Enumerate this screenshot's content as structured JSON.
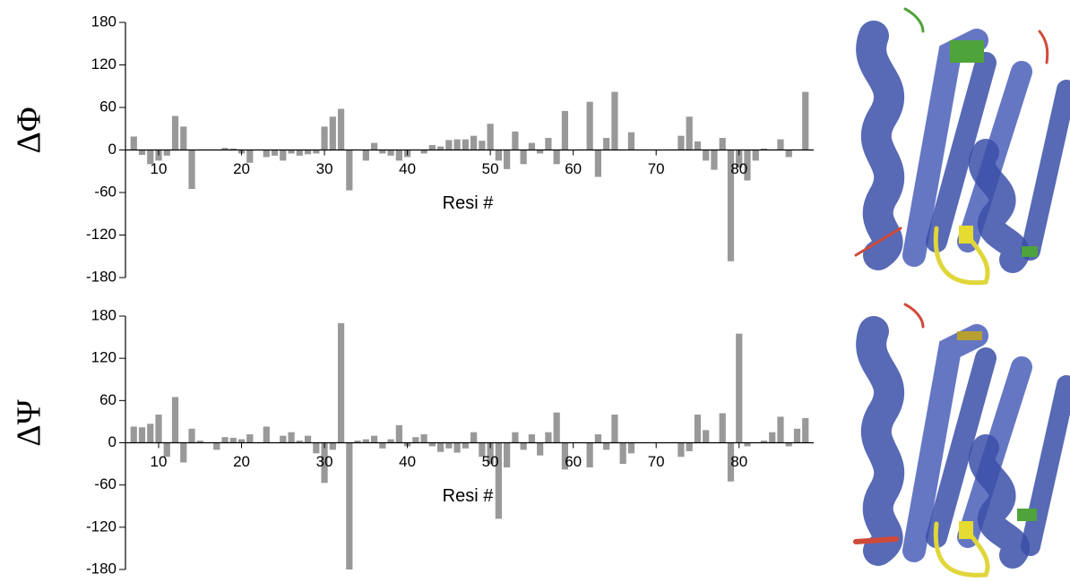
{
  "chart_data": [
    {
      "type": "bar",
      "y_label": "ΔΦ",
      "x_label": "Resi #",
      "color": "#999999",
      "x": [
        7,
        8,
        9,
        10,
        11,
        12,
        13,
        14,
        15,
        16,
        17,
        18,
        19,
        20,
        21,
        22,
        23,
        24,
        25,
        26,
        27,
        28,
        29,
        30,
        31,
        32,
        33,
        34,
        35,
        36,
        37,
        38,
        39,
        40,
        41,
        42,
        43,
        44,
        45,
        46,
        47,
        48,
        49,
        50,
        51,
        52,
        53,
        54,
        55,
        56,
        57,
        58,
        59,
        60,
        61,
        62,
        63,
        64,
        65,
        66,
        67,
        68,
        69,
        70,
        71,
        72,
        73,
        74,
        75,
        76,
        77,
        78,
        79,
        80,
        81,
        82,
        83,
        84,
        85,
        86,
        87,
        88
      ],
      "values": [
        19,
        -7,
        -20,
        -15,
        -8,
        48,
        33,
        -55,
        0,
        0,
        0,
        3,
        2,
        -5,
        -18,
        0,
        -10,
        -8,
        -15,
        -5,
        -8,
        -6,
        -5,
        33,
        47,
        58,
        -57,
        0,
        -15,
        10,
        -5,
        -8,
        -15,
        -10,
        0,
        -5,
        7,
        5,
        14,
        15,
        15,
        20,
        13,
        37,
        -15,
        -27,
        26,
        -20,
        10,
        -5,
        17,
        -20,
        55,
        0,
        0,
        68,
        -38,
        17,
        82,
        0,
        25,
        0,
        0,
        0,
        0,
        0,
        20,
        47,
        12,
        -15,
        -28,
        17,
        -157,
        -25,
        -43,
        -15,
        2,
        0,
        15,
        -10,
        0,
        82
      ],
      "xlim": [
        6,
        89
      ],
      "xticks": [
        10,
        20,
        30,
        40,
        50,
        60,
        70,
        80
      ],
      "ylim": [
        -180,
        180
      ],
      "yticks": [
        180,
        120,
        60,
        0,
        -60,
        -120,
        -180
      ]
    },
    {
      "type": "bar",
      "y_label": "ΔΨ",
      "x_label": "Resi #",
      "color": "#999999",
      "x": [
        7,
        8,
        9,
        10,
        11,
        12,
        13,
        14,
        15,
        16,
        17,
        18,
        19,
        20,
        21,
        22,
        23,
        24,
        25,
        26,
        27,
        28,
        29,
        30,
        31,
        32,
        33,
        34,
        35,
        36,
        37,
        38,
        39,
        40,
        41,
        42,
        43,
        44,
        45,
        46,
        47,
        48,
        49,
        50,
        51,
        52,
        53,
        54,
        55,
        56,
        57,
        58,
        59,
        60,
        61,
        62,
        63,
        64,
        65,
        66,
        67,
        68,
        69,
        70,
        71,
        72,
        73,
        74,
        75,
        76,
        77,
        78,
        79,
        80,
        81,
        82,
        83,
        84,
        85,
        86,
        87,
        88
      ],
      "values": [
        23,
        22,
        27,
        40,
        -20,
        65,
        -28,
        20,
        3,
        0,
        -10,
        8,
        7,
        5,
        12,
        0,
        23,
        0,
        10,
        15,
        3,
        10,
        -15,
        -57,
        -10,
        170,
        -180,
        3,
        5,
        10,
        -8,
        5,
        25,
        -5,
        8,
        12,
        -5,
        -13,
        -8,
        -14,
        -8,
        15,
        -20,
        -30,
        -108,
        -35,
        15,
        -10,
        12,
        -18,
        15,
        43,
        -38,
        0,
        0,
        -35,
        12,
        -10,
        40,
        -30,
        -15,
        0,
        0,
        0,
        0,
        0,
        -20,
        -12,
        40,
        18,
        0,
        42,
        -55,
        155,
        -5,
        0,
        3,
        15,
        37,
        -5,
        20,
        35
      ],
      "xlim": [
        6,
        89
      ],
      "xticks": [
        10,
        20,
        30,
        40,
        50,
        60,
        70,
        80
      ],
      "ylim": [
        -180,
        180
      ],
      "yticks": [
        180,
        120,
        60,
        0,
        -60,
        -120,
        -180
      ]
    }
  ]
}
